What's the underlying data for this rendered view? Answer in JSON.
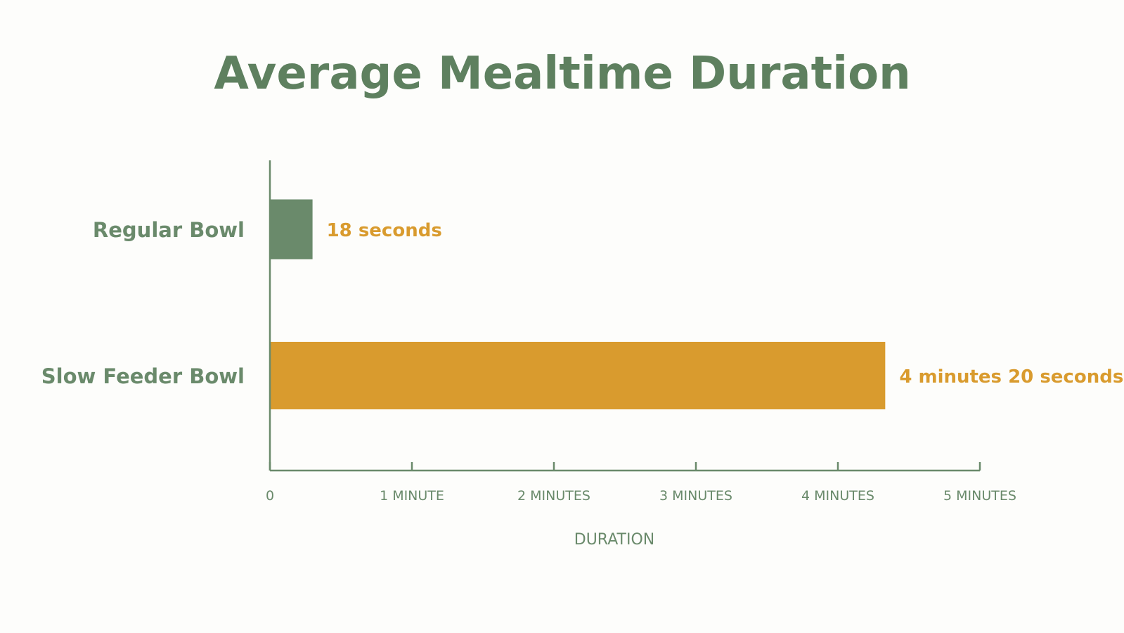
{
  "colors": {
    "green": "#6a8a6b",
    "title_green": "#5e805f",
    "gold": "#d99b2e",
    "background": "#fdfdfb"
  },
  "chart_data": {
    "type": "bar",
    "orientation": "horizontal",
    "title": "Average Mealtime Duration",
    "categories": [
      "Regular Bowl",
      "Slow Feeder Bowl"
    ],
    "values": [
      18,
      260
    ],
    "value_unit": "seconds",
    "data_labels": [
      "18 seconds",
      "4 minutes 20 seconds"
    ],
    "bar_colors": [
      "#6a8a6b",
      "#d99b2e"
    ],
    "label_colors": [
      "#d99b2e",
      "#d99b2e"
    ],
    "xlabel": "DURATION",
    "xlim": [
      0,
      300
    ],
    "x_ticks": [
      0,
      60,
      120,
      180,
      240,
      300
    ],
    "x_tick_labels": [
      "0",
      "1 MINUTE",
      "2 MINUTES",
      "3 MINUTES",
      "4 MINUTES",
      "5 MINUTES"
    ],
    "grid": false,
    "legend": false
  }
}
